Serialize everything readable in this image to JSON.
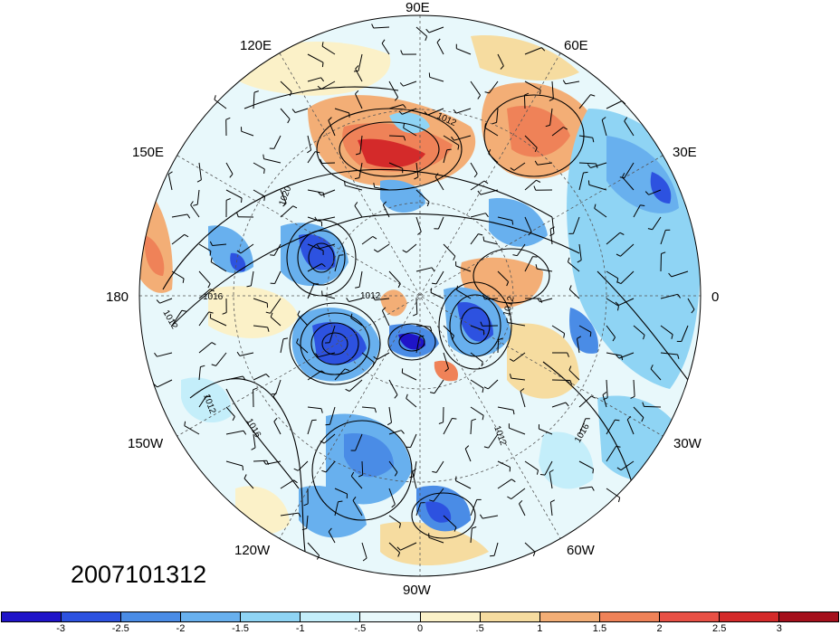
{
  "lon_labels": {
    "e90": "90E",
    "e120": "120E",
    "e60": "60E",
    "e150": "150E",
    "e30": "30E",
    "d180": "180",
    "d0": "0",
    "w150": "150W",
    "w30": "30W",
    "w120": "120W",
    "w60": "60W",
    "w90": "90W"
  },
  "contour_labels": [
    "1012",
    "1020",
    "1016",
    "1012",
    "1012",
    "1012",
    "1016",
    "1012",
    "1016",
    "1012"
  ],
  "datestamp": "2007101312",
  "colorbar": {
    "colors": [
      "#1f14c8",
      "#2d52e0",
      "#4a8ce6",
      "#68b0ee",
      "#8fd4f4",
      "#c4eefa",
      "#e8f8fb",
      "#fbf1c8",
      "#f6dca0",
      "#f3ae76",
      "#ef8258",
      "#e85045",
      "#d42a2a",
      "#a5101c"
    ],
    "labels": [
      "-3",
      "-2.5",
      "-2",
      "-1.5",
      "-1",
      "-.5",
      "0",
      ".5",
      "1",
      "1.5",
      "2",
      "2.5",
      "3"
    ]
  }
}
